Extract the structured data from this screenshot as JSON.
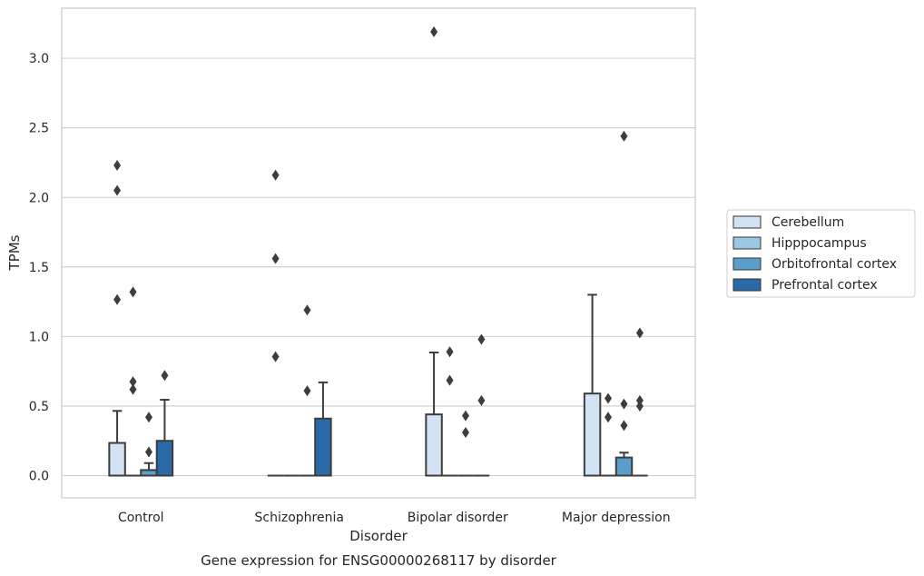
{
  "chart_data": {
    "type": "box",
    "caption": "Gene expression for ENSG00000268117 by disorder",
    "xlabel": "Disorder",
    "ylabel": "TPMs",
    "ylim": [
      -0.16,
      3.36
    ],
    "yticks": [
      "0.0",
      "0.5",
      "1.0",
      "1.5",
      "2.0",
      "2.5",
      "3.0"
    ],
    "grid": "horizontal",
    "legend_position": "right",
    "categories": [
      "Control",
      "Schizophrenia",
      "Bipolar disorder",
      "Major depression"
    ],
    "series": [
      {
        "name": "Cerebellum",
        "color": "#d2e3f3",
        "boxes": [
          {
            "q1": 0.0,
            "median": 0.0,
            "q3": 0.235,
            "whisker_low": 0.0,
            "whisker_high": 0.465,
            "outliers": [
              1.265,
              2.05,
              2.23
            ]
          },
          {
            "q1": 0.0,
            "median": 0.0,
            "q3": 0.0,
            "whisker_low": 0.0,
            "whisker_high": 0.0,
            "outliers": [
              0.855,
              1.56,
              2.16
            ]
          },
          {
            "q1": 0.0,
            "median": 0.0,
            "q3": 0.44,
            "whisker_low": 0.0,
            "whisker_high": 0.885,
            "outliers": [
              3.19
            ]
          },
          {
            "q1": 0.0,
            "median": 0.0,
            "q3": 0.59,
            "whisker_low": 0.0,
            "whisker_high": 1.3,
            "outliers": []
          }
        ]
      },
      {
        "name": "Hipppocampus",
        "color": "#9ac8e0",
        "boxes": [
          {
            "q1": 0.0,
            "median": 0.0,
            "q3": 0.0,
            "whisker_low": 0.0,
            "whisker_high": 0.0,
            "outliers": [
              0.62,
              0.675,
              1.32
            ]
          },
          {
            "q1": 0.0,
            "median": 0.0,
            "q3": 0.0,
            "whisker_low": 0.0,
            "whisker_high": 0.0,
            "outliers": []
          },
          {
            "q1": 0.0,
            "median": 0.0,
            "q3": 0.0,
            "whisker_low": 0.0,
            "whisker_high": 0.0,
            "outliers": [
              0.685,
              0.89
            ]
          },
          {
            "q1": 0.0,
            "median": 0.0,
            "q3": 0.0,
            "whisker_low": 0.0,
            "whisker_high": 0.0,
            "outliers": [
              0.42,
              0.555
            ]
          }
        ]
      },
      {
        "name": "Orbitofrontal cortex",
        "color": "#5a9fc9",
        "boxes": [
          {
            "q1": 0.0,
            "median": 0.0,
            "q3": 0.04,
            "whisker_low": 0.0,
            "whisker_high": 0.09,
            "outliers": [
              0.17,
              0.42
            ]
          },
          {
            "q1": 0.0,
            "median": 0.0,
            "q3": 0.0,
            "whisker_low": 0.0,
            "whisker_high": 0.0,
            "outliers": [
              0.61,
              1.19
            ]
          },
          {
            "q1": 0.0,
            "median": 0.0,
            "q3": 0.0,
            "whisker_low": 0.0,
            "whisker_high": 0.0,
            "outliers": [
              0.31,
              0.43
            ]
          },
          {
            "q1": 0.0,
            "median": 0.0,
            "q3": 0.13,
            "whisker_low": 0.0,
            "whisker_high": 0.165,
            "outliers": [
              0.36,
              0.515,
              2.44
            ]
          }
        ]
      },
      {
        "name": "Prefrontal cortex",
        "color": "#2b6aa8",
        "boxes": [
          {
            "q1": 0.0,
            "median": 0.0,
            "q3": 0.25,
            "whisker_low": 0.0,
            "whisker_high": 0.545,
            "outliers": [
              0.72
            ]
          },
          {
            "q1": 0.0,
            "median": 0.0,
            "q3": 0.41,
            "whisker_low": 0.0,
            "whisker_high": 0.67,
            "outliers": []
          },
          {
            "q1": 0.0,
            "median": 0.0,
            "q3": 0.0,
            "whisker_low": 0.0,
            "whisker_high": 0.0,
            "outliers": [
              0.54,
              0.98
            ]
          },
          {
            "q1": 0.0,
            "median": 0.0,
            "q3": 0.0,
            "whisker_low": 0.0,
            "whisker_high": 0.0,
            "outliers": [
              0.5,
              0.54,
              1.025
            ]
          }
        ]
      }
    ]
  }
}
